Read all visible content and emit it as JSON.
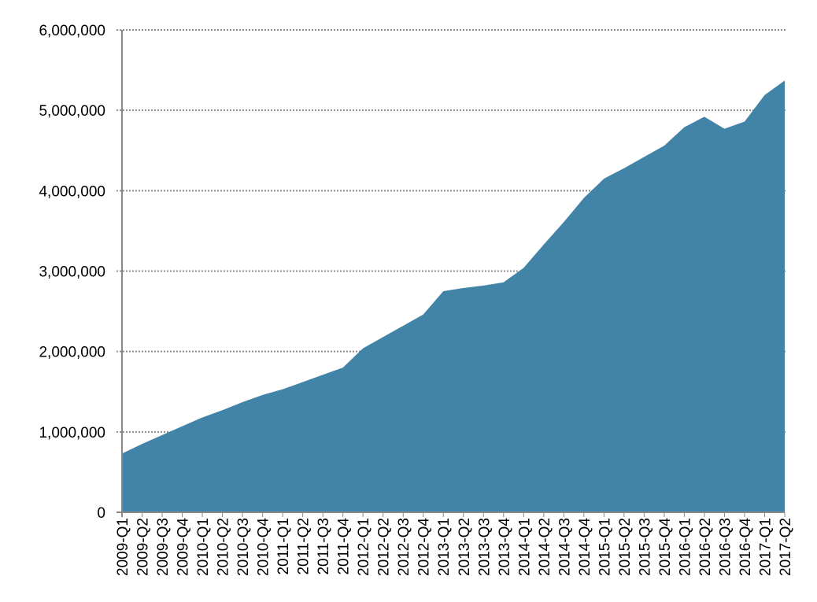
{
  "chart_data": {
    "type": "area",
    "categories": [
      "2009-Q1",
      "2009-Q2",
      "2009-Q3",
      "2009-Q4",
      "2010-Q1",
      "2010-Q2",
      "2010-Q3",
      "2010-Q4",
      "2011-Q1",
      "2011-Q2",
      "2011-Q3",
      "2011-Q4",
      "2012-Q1",
      "2012-Q2",
      "2012-Q3",
      "2012-Q4",
      "2013-Q1",
      "2013-Q2",
      "2013-Q3",
      "2013-Q4",
      "2014-Q1",
      "2014-Q2",
      "2014-Q3",
      "2014-Q4",
      "2015-Q1",
      "2015-Q2",
      "2015-Q3",
      "2015-Q4",
      "2016-Q1",
      "2016-Q2",
      "2016-Q3",
      "2016-Q4",
      "2017-Q1",
      "2017-Q2"
    ],
    "values": [
      730000,
      850000,
      960000,
      1070000,
      1180000,
      1270000,
      1370000,
      1460000,
      1530000,
      1620000,
      1710000,
      1800000,
      2040000,
      2180000,
      2320000,
      2460000,
      2750000,
      2790000,
      2820000,
      2860000,
      3040000,
      3330000,
      3610000,
      3910000,
      4150000,
      4280000,
      4420000,
      4560000,
      4790000,
      4920000,
      4770000,
      4860000,
      5190000,
      5370000
    ],
    "color": "#4284a8",
    "ylim": [
      0,
      6000000
    ],
    "yticks": [
      0,
      {
        "value": 1000000,
        "label": "1,000,000"
      },
      {
        "value": 2000000,
        "label": "2,000,000"
      },
      {
        "value": 3000000,
        "label": "3,000,000"
      },
      {
        "value": 4000000,
        "label": "4,000,000"
      },
      {
        "value": 5000000,
        "label": "5,000,000"
      },
      {
        "value": 6000000,
        "label": "6,000,000"
      }
    ],
    "grid": true
  }
}
